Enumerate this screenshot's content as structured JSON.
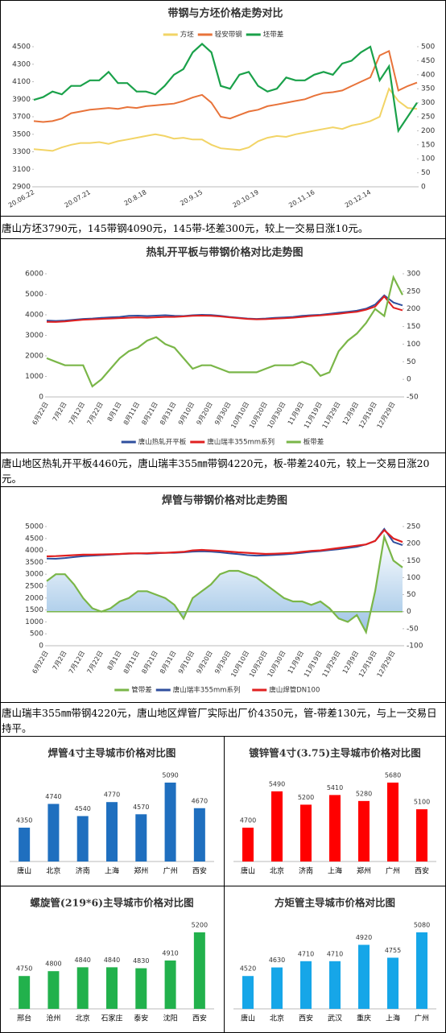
{
  "chart_data": [
    {
      "type": "line",
      "title": "带钢与方坯价格走势对比",
      "categories": [
        "20.06.22",
        null,
        null,
        null,
        null,
        null,
        "20.07.21",
        null,
        null,
        null,
        null,
        null,
        "20.8.18",
        null,
        null,
        null,
        null,
        null,
        "20.9.15",
        null,
        null,
        null,
        null,
        null,
        "20.10.19",
        null,
        null,
        null,
        null,
        null,
        "20.11.16",
        null,
        null,
        null,
        null,
        null,
        "20.12.14",
        null,
        null,
        null,
        null,
        null
      ],
      "ylim": [
        2900,
        4500
      ],
      "yticks": [
        2900,
        3100,
        3300,
        3500,
        3700,
        3900,
        4100,
        4300,
        4500
      ],
      "y2lim": [
        0,
        500
      ],
      "y2ticks": [
        0,
        50,
        100,
        150,
        200,
        250,
        300,
        350,
        400,
        450,
        500
      ],
      "series": [
        {
          "name": "方坯",
          "color": "#f2d466",
          "values": [
            3330,
            3320,
            3310,
            3350,
            3380,
            3400,
            3400,
            3410,
            3390,
            3420,
            3440,
            3460,
            3480,
            3500,
            3480,
            3450,
            3460,
            3440,
            3440,
            3380,
            3340,
            3330,
            3320,
            3350,
            3420,
            3460,
            3480,
            3470,
            3500,
            3520,
            3540,
            3560,
            3580,
            3560,
            3600,
            3620,
            3650,
            3700,
            4020,
            3880,
            3800,
            3790
          ]
        },
        {
          "name": "轻安带钢",
          "color": "#e8733a",
          "values": [
            3650,
            3640,
            3650,
            3680,
            3740,
            3760,
            3780,
            3790,
            3800,
            3790,
            3810,
            3800,
            3820,
            3830,
            3840,
            3850,
            3880,
            3920,
            3950,
            3860,
            3700,
            3680,
            3720,
            3760,
            3780,
            3820,
            3840,
            3860,
            3880,
            3900,
            3940,
            3970,
            3980,
            4000,
            4050,
            4100,
            4150,
            4400,
            4450,
            4000,
            4050,
            4090
          ]
        },
        {
          "name": "坯带差",
          "color": "#1aa14a",
          "axis": "y2",
          "values": [
            310,
            320,
            340,
            330,
            360,
            360,
            380,
            380,
            410,
            370,
            370,
            340,
            340,
            330,
            360,
            400,
            420,
            480,
            510,
            480,
            360,
            350,
            400,
            410,
            360,
            340,
            350,
            390,
            380,
            380,
            400,
            410,
            400,
            440,
            450,
            480,
            500,
            380,
            430,
            200,
            250,
            300
          ]
        }
      ]
    },
    {
      "type": "line",
      "title": "热轧开平板与带钢价格对比走势图",
      "categories": [
        "6月22日",
        null,
        "7月2日",
        null,
        "7月12日",
        null,
        "7月22日",
        null,
        "8月1日",
        null,
        "8月11日",
        null,
        "8月21日",
        null,
        "8月31日",
        null,
        "9月10日",
        null,
        "9月20日",
        null,
        "9月30日",
        null,
        "10月10日",
        null,
        "10月20日",
        null,
        "10月30日",
        null,
        "11月9日",
        null,
        "11月19日",
        null,
        "11月29日",
        null,
        "12月9日",
        null,
        "12月19日",
        null,
        "12月29日",
        null
      ],
      "ylim": [
        0,
        6000
      ],
      "yticks": [
        0,
        1000,
        2000,
        3000,
        4000,
        5000,
        6000
      ],
      "y2lim": [
        -50,
        300
      ],
      "y2ticks": [
        -50,
        0,
        50,
        100,
        150,
        200,
        250,
        300
      ],
      "series": [
        {
          "name": "唐山热轧开平板",
          "color": "#2f4f9e",
          "values": [
            3720,
            3700,
            3720,
            3760,
            3800,
            3820,
            3850,
            3880,
            3900,
            3950,
            3960,
            3940,
            3960,
            3980,
            3950,
            3940,
            3980,
            4000,
            3990,
            3950,
            3900,
            3860,
            3820,
            3800,
            3820,
            3850,
            3870,
            3900,
            3950,
            3980,
            4000,
            4050,
            4100,
            4150,
            4200,
            4300,
            4500,
            4950,
            4600,
            4460
          ]
        },
        {
          "name": "唐山瑞丰355mm系列",
          "color": "#e02020",
          "values": [
            3660,
            3650,
            3680,
            3720,
            3760,
            3780,
            3800,
            3820,
            3840,
            3860,
            3870,
            3860,
            3880,
            3900,
            3900,
            3920,
            3950,
            3960,
            3950,
            3920,
            3880,
            3840,
            3800,
            3780,
            3790,
            3810,
            3830,
            3860,
            3900,
            3940,
            3970,
            4010,
            4050,
            4100,
            4150,
            4250,
            4400,
            4900,
            4350,
            4220
          ]
        },
        {
          "name": "板带差",
          "color": "#7ab648",
          "axis": "y2",
          "values": [
            60,
            50,
            40,
            40,
            40,
            -20,
            0,
            30,
            60,
            80,
            90,
            110,
            120,
            100,
            90,
            60,
            30,
            40,
            40,
            30,
            20,
            20,
            20,
            20,
            30,
            40,
            40,
            40,
            50,
            40,
            10,
            20,
            80,
            110,
            130,
            160,
            200,
            180,
            290,
            240
          ]
        }
      ]
    },
    {
      "type": "line",
      "title": "焊管与带钢价格对比走势图",
      "categories": [
        "6月22日",
        null,
        "7月2日",
        null,
        "7月12日",
        null,
        "7月22日",
        null,
        "8月1日",
        null,
        "8月11日",
        null,
        "8月21日",
        null,
        "8月31日",
        null,
        "9月10日",
        null,
        "9月20日",
        null,
        "9月30日",
        null,
        "10月10日",
        null,
        "10月20日",
        null,
        "10月30日",
        null,
        "11月9日",
        null,
        "11月19日",
        null,
        "11月29日",
        null,
        "12月9日",
        null,
        "12月19日",
        null,
        "12月29日",
        null
      ],
      "ylim": [
        0,
        5000
      ],
      "yticks": [
        0,
        500,
        1000,
        1500,
        2000,
        2500,
        3000,
        3500,
        4000,
        4500,
        5000
      ],
      "y2lim": [
        -100,
        250
      ],
      "y2ticks": [
        -100,
        -50,
        0,
        50,
        100,
        150,
        200,
        250
      ],
      "series": [
        {
          "name": "管带差",
          "color": "#7ab648",
          "axis": "y2",
          "area": true,
          "values": [
            90,
            110,
            110,
            80,
            40,
            10,
            0,
            10,
            30,
            40,
            60,
            60,
            50,
            40,
            20,
            -20,
            40,
            60,
            80,
            110,
            120,
            120,
            110,
            100,
            80,
            60,
            40,
            30,
            30,
            20,
            30,
            10,
            -20,
            -30,
            -10,
            -60,
            60,
            220,
            150,
            130
          ]
        },
        {
          "name": "唐山瑞丰355mm系列",
          "color": "#2f4f9e",
          "values": [
            3660,
            3650,
            3680,
            3720,
            3760,
            3780,
            3800,
            3820,
            3840,
            3860,
            3870,
            3860,
            3880,
            3900,
            3900,
            3920,
            3950,
            3960,
            3950,
            3920,
            3880,
            3840,
            3800,
            3780,
            3790,
            3810,
            3830,
            3860,
            3900,
            3940,
            3970,
            4010,
            4050,
            4100,
            4150,
            4250,
            4400,
            4900,
            4350,
            4220
          ]
        },
        {
          "name": "唐山焊管DN100",
          "color": "#e02020",
          "values": [
            3750,
            3760,
            3780,
            3800,
            3820,
            3820,
            3830,
            3840,
            3850,
            3870,
            3880,
            3880,
            3900,
            3900,
            3920,
            3940,
            4000,
            4020,
            4000,
            3980,
            3950,
            3920,
            3900,
            3870,
            3850,
            3860,
            3880,
            3900,
            3940,
            3980,
            4000,
            4050,
            4100,
            4150,
            4200,
            4250,
            4400,
            4850,
            4500,
            4350
          ]
        }
      ]
    },
    {
      "type": "bar",
      "title": "焊管4寸主导城市价格对比图",
      "color": "#1f6fbf",
      "categories": [
        "唐山",
        "北京",
        "济南",
        "上海",
        "郑州",
        "广州",
        "西安"
      ],
      "values": [
        4350,
        4740,
        4540,
        4770,
        4570,
        5090,
        4670
      ]
    },
    {
      "type": "bar",
      "title": "镀锌管4寸(3.75)主导城市价格对比图",
      "color": "#ff0000",
      "categories": [
        "唐山",
        "北京",
        "济南",
        "上海",
        "郑州",
        "广州",
        "西安"
      ],
      "values": [
        4700,
        5490,
        5200,
        5410,
        5280,
        5680,
        5100
      ]
    },
    {
      "type": "bar",
      "title": "螺旋管(219*6)主导城市价格对比图",
      "color": "#22b14c",
      "categories": [
        "邢台",
        "沧州",
        "北京",
        "石家庄",
        "泰安",
        "沈阳",
        "西安"
      ],
      "values": [
        4750,
        4800,
        4840,
        4840,
        4830,
        4910,
        5200
      ]
    },
    {
      "type": "bar",
      "title": "方矩管主导城市价格对比图",
      "color": "#16a6e8",
      "categories": [
        "唐山",
        "北京",
        "西安",
        "武汉",
        "重庆",
        "上海",
        "广州"
      ],
      "values": [
        4520,
        4630,
        4710,
        4710,
        4920,
        4755,
        5080
      ]
    }
  ],
  "texts": [
    "唐山方坯3790元，145带钢4090元，145带-坯差300元，较上一交易日涨10元。",
    "唐山地区热轧开平板4460元，唐山瑞丰355㎜带钢4220元，板-带差240元，较上一交易日涨20元。",
    "唐山瑞丰355㎜带钢4220元，唐山地区焊管厂实际出厂价4350元，管-带差130元，与上一交易日持平。"
  ]
}
